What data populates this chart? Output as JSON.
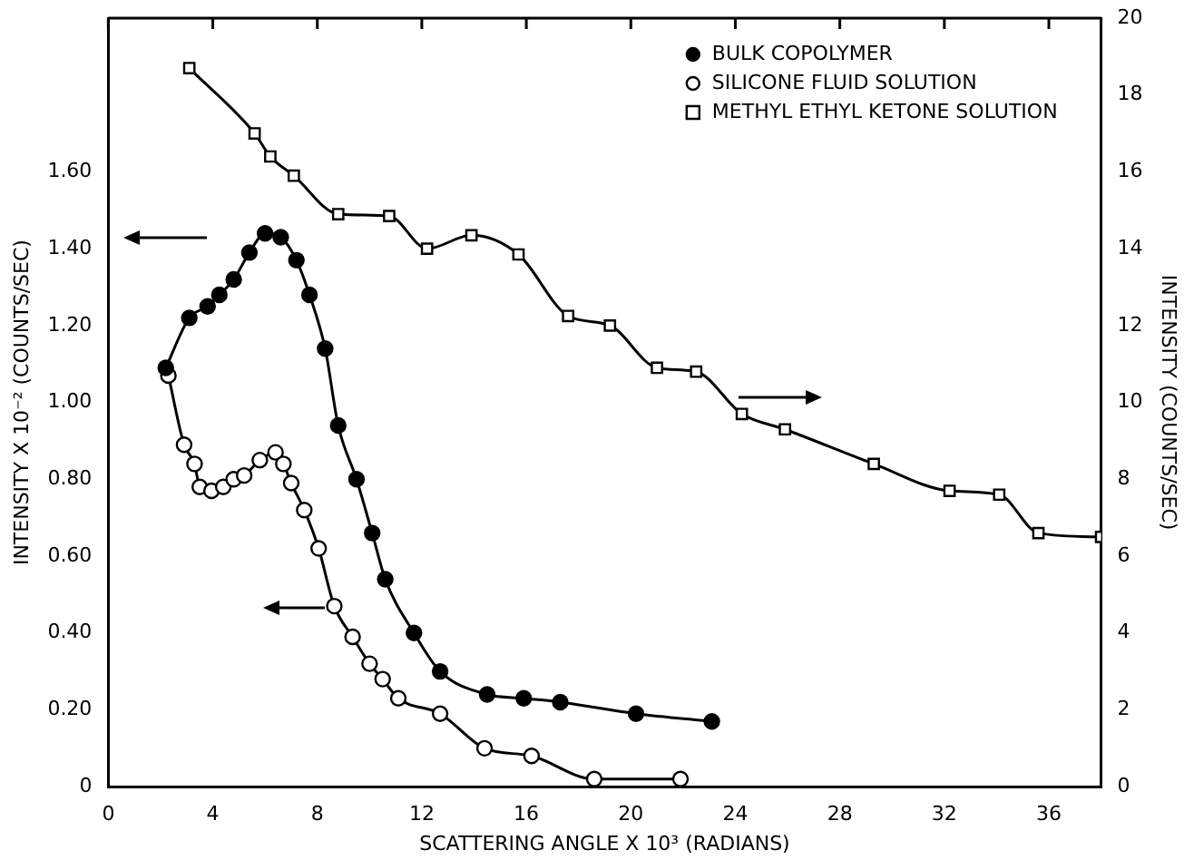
{
  "chart_data": {
    "type": "line",
    "xlabel": "SCATTERING ANGLE X 10³ (RADIANS)",
    "ylabel": "INTENSITY X 10⁻² (COUNTS/SEC)",
    "y2label": "INTENSITY (COUNTS/SEC)",
    "xlim": [
      0,
      38
    ],
    "xticks": [
      0,
      4,
      8,
      12,
      16,
      20,
      24,
      28,
      32,
      36
    ],
    "ylim": [
      0,
      2.0
    ],
    "yticks": [
      0,
      {
        "value": 0.2,
        "label": "0.20"
      },
      {
        "value": 0.4,
        "label": "0.40"
      },
      {
        "value": 0.6,
        "label": "0.60"
      },
      {
        "value": 0.8,
        "label": "0.80"
      },
      {
        "value": 1.0,
        "label": "1.00"
      },
      {
        "value": 1.2,
        "label": "1.20"
      },
      {
        "value": 1.4,
        "label": "1.40"
      },
      {
        "value": 1.6,
        "label": "1.60"
      }
    ],
    "y2lim": [
      0,
      20
    ],
    "y2ticks": [
      0,
      2,
      4,
      6,
      8,
      10,
      12,
      14,
      16,
      18,
      20
    ],
    "grid": false,
    "legend": "top right",
    "line_style": "solid",
    "series": [
      {
        "name": "BULK COPOLYMER",
        "color": "#000000",
        "marker": "circle",
        "x": [
          2.2,
          3.1,
          3.8,
          4.25,
          4.8,
          5.4,
          6.0,
          6.6,
          7.2,
          7.7,
          8.3,
          8.8,
          9.5,
          10.1,
          10.6,
          11.7,
          12.7,
          14.5,
          15.9,
          17.3,
          20.2,
          23.1
        ],
        "values": [
          1.09,
          1.22,
          1.25,
          1.28,
          1.32,
          1.39,
          1.44,
          1.43,
          1.37,
          1.28,
          1.14,
          0.94,
          0.8,
          0.66,
          0.54,
          0.4,
          0.3,
          0.24,
          0.23,
          0.22,
          0.19,
          0.17
        ]
      },
      {
        "name": "SILICONE FLUID SOLUTION",
        "color": "#000000",
        "marker": "circle",
        "x": [
          2.3,
          2.9,
          3.3,
          3.5,
          3.95,
          4.4,
          4.8,
          5.2,
          5.8,
          6.4,
          6.7,
          7.0,
          7.5,
          8.05,
          8.65,
          9.35,
          10.0,
          10.5,
          11.1,
          12.7,
          14.4,
          16.2,
          18.6,
          21.9
        ],
        "values": [
          1.07,
          0.89,
          0.84,
          0.78,
          0.77,
          0.78,
          0.8,
          0.81,
          0.85,
          0.87,
          0.84,
          0.79,
          0.72,
          0.62,
          0.47,
          0.39,
          0.32,
          0.28,
          0.23,
          0.19,
          0.1,
          0.08,
          0.02,
          0.02
        ]
      },
      {
        "name": "METHYL ETHYL KETONE SOLUTION",
        "color": "#000000",
        "marker": "square",
        "axis": "y2",
        "x": [
          3.1,
          5.6,
          6.2,
          7.1,
          8.8,
          10.75,
          12.2,
          13.9,
          15.7,
          17.6,
          19.2,
          21.0,
          22.5,
          24.25,
          25.9,
          29.3,
          32.2,
          34.1,
          35.6,
          38.0
        ],
        "values": [
          18.7,
          17.0,
          16.4,
          15.9,
          14.9,
          14.85,
          14.0,
          14.35,
          13.85,
          12.25,
          12.0,
          10.9,
          10.8,
          9.7,
          9.3,
          8.4,
          7.7,
          7.6,
          6.6,
          6.5
        ]
      }
    ]
  }
}
